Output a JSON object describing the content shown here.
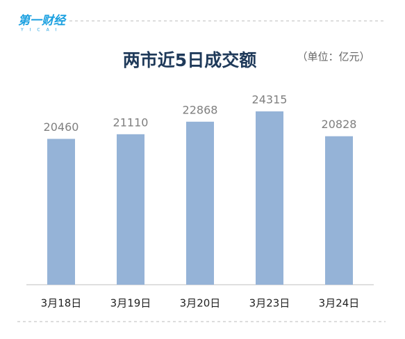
{
  "logo": "第一财经",
  "logo_sub": "YICAI",
  "chart_data": {
    "type": "bar",
    "title": "两市近5日成交额",
    "subtitle": "（单位：亿元）",
    "categories": [
      "3月18日",
      "3月19日",
      "3月20日",
      "3月23日",
      "3月24日"
    ],
    "values": [
      20460,
      21110,
      22868,
      24315,
      20828
    ],
    "color": "#95b3d7"
  }
}
